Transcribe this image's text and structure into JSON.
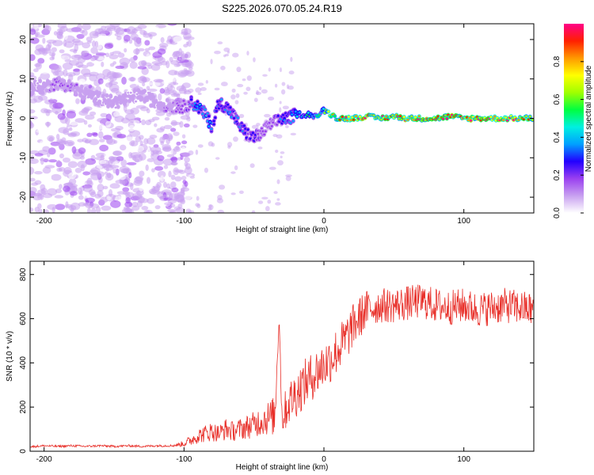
{
  "chart_data": [
    {
      "type": "heatmap",
      "title": "S225.2026.070.05.24.R19",
      "xlabel": "Height of straight line (km)",
      "ylabel": "Frequency (Hz)",
      "xlim": [
        -210,
        150
      ],
      "ylim": [
        -24,
        24
      ],
      "xticks": [
        -200,
        -100,
        0,
        100
      ],
      "yticks": [
        -20,
        -10,
        0,
        10,
        20
      ],
      "colorbar": {
        "label": "Normalized spectral amplitude",
        "range": [
          0,
          1
        ],
        "ticks": [
          0.0,
          0.2,
          0.4,
          0.6,
          0.8
        ],
        "tick_labels": [
          "0.0",
          "0.2",
          "0.4",
          "0.6",
          "0.8"
        ],
        "colors": [
          "#ffffff",
          "#c8a0f0",
          "#9a40f0",
          "#2200ff",
          "#00a0ff",
          "#00f0e0",
          "#00ff40",
          "#a0ff00",
          "#ffff00",
          "#ff9900",
          "#ff2000",
          "#ff0088"
        ]
      },
      "signal_track": {
        "x": [
          -200,
          -190,
          -180,
          -170,
          -160,
          -150,
          -140,
          -130,
          -120,
          -110,
          -100,
          -95,
          -90,
          -85,
          -80,
          -75,
          -70,
          -65,
          -60,
          -55,
          -50,
          -45,
          -40,
          -35,
          -30,
          -25,
          -20,
          -15,
          -10,
          -5,
          0,
          10,
          20,
          30,
          40,
          50,
          60,
          70,
          80,
          90,
          100,
          110,
          120,
          130,
          140,
          150
        ],
        "y": [
          8,
          9,
          8,
          6,
          5,
          4,
          5,
          6,
          4,
          3,
          3,
          4,
          3,
          1,
          -2,
          4,
          3,
          1,
          -2,
          -4,
          -5,
          -4,
          -2,
          -1,
          0,
          0,
          1,
          1,
          1,
          0.5,
          2,
          0,
          0,
          0.5,
          0,
          0.5,
          0,
          0,
          0,
          0.5,
          0,
          0,
          0,
          0,
          0,
          0
        ],
        "amplitude": [
          0.1,
          0.15,
          0.15,
          0.1,
          0.1,
          0.1,
          0.1,
          0.1,
          0.1,
          0.15,
          0.2,
          0.3,
          0.35,
          0.4,
          0.35,
          0.3,
          0.35,
          0.3,
          0.3,
          0.25,
          0.25,
          0.2,
          0.2,
          0.2,
          0.3,
          0.35,
          0.4,
          0.45,
          0.45,
          0.5,
          0.55,
          0.8,
          0.85,
          0.85,
          0.8,
          0.85,
          0.85,
          0.85,
          0.8,
          0.85,
          0.85,
          0.85,
          0.8,
          0.85,
          0.85,
          0.8
        ]
      }
    },
    {
      "type": "line",
      "title": "",
      "xlabel": "Height of straight line (km)",
      "ylabel": "SNR (10 * v/v)",
      "xlim": [
        -210,
        150
      ],
      "ylim": [
        0,
        860
      ],
      "xticks": [
        -200,
        -100,
        0,
        100
      ],
      "yticks": [
        0,
        200,
        400,
        600,
        800
      ],
      "series": [
        {
          "name": "SNR",
          "color": "#e8302a",
          "x": [
            -210,
            -200,
            -190,
            -180,
            -170,
            -160,
            -150,
            -140,
            -130,
            -120,
            -110,
            -105,
            -100,
            -95,
            -90,
            -85,
            -80,
            -75,
            -70,
            -65,
            -60,
            -55,
            -50,
            -45,
            -40,
            -35,
            -32,
            -30,
            -28,
            -25,
            -20,
            -15,
            -10,
            -5,
            0,
            5,
            10,
            15,
            20,
            25,
            30,
            40,
            50,
            60,
            70,
            80,
            90,
            100,
            110,
            120,
            130,
            140,
            150
          ],
          "values": [
            20,
            25,
            22,
            25,
            22,
            25,
            22,
            25,
            22,
            25,
            25,
            28,
            35,
            50,
            70,
            80,
            90,
            80,
            100,
            90,
            100,
            110,
            120,
            140,
            150,
            160,
            620,
            150,
            180,
            220,
            260,
            300,
            330,
            360,
            390,
            420,
            460,
            500,
            560,
            600,
            640,
            660,
            660,
            670,
            680,
            660,
            650,
            660,
            640,
            650,
            660,
            650,
            640
          ],
          "noise": [
            5,
            5,
            5,
            5,
            5,
            5,
            5,
            5,
            5,
            5,
            5,
            8,
            15,
            25,
            35,
            40,
            45,
            40,
            50,
            45,
            50,
            55,
            60,
            70,
            80,
            90,
            30,
            80,
            90,
            100,
            110,
            110,
            110,
            110,
            110,
            110,
            110,
            110,
            100,
            100,
            90,
            80,
            80,
            80,
            80,
            80,
            80,
            80,
            80,
            80,
            80,
            80,
            80
          ]
        }
      ]
    }
  ]
}
